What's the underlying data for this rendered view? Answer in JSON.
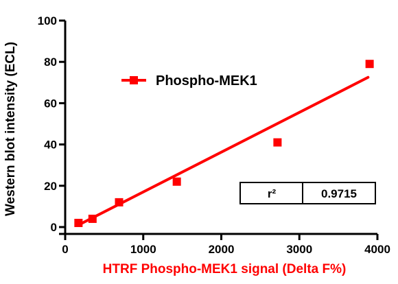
{
  "chart_data": {
    "type": "scatter",
    "xlabel": "HTRF Phospho-MEK1 signal (Delta F%)",
    "ylabel": "Western blot intensity (ECL)",
    "xlim": [
      0,
      4000
    ],
    "ylim": [
      0,
      100
    ],
    "x_ticks": [
      "0",
      "1000",
      "2000",
      "3000",
      "4000"
    ],
    "y_ticks": [
      "0",
      "20",
      "40",
      "60",
      "80",
      "100"
    ],
    "grid": false,
    "legend": "top-left",
    "series": [
      {
        "name": "Phospho-MEK1",
        "color": "#ff0000",
        "marker": "square",
        "x": [
          170,
          350,
          690,
          1430,
          2720,
          3900
        ],
        "y": [
          2,
          4,
          12,
          22,
          41,
          79
        ]
      }
    ],
    "fit_line": {
      "type": "linear",
      "color": "#ff0000",
      "x": [
        170,
        3880
      ],
      "y": [
        1,
        72.5
      ]
    },
    "stats_table": {
      "label": "r²",
      "value": "0.9715"
    },
    "colors": {
      "xlabel": "#ff0000",
      "ylabel": "#000000",
      "axis": "#000000"
    }
  }
}
